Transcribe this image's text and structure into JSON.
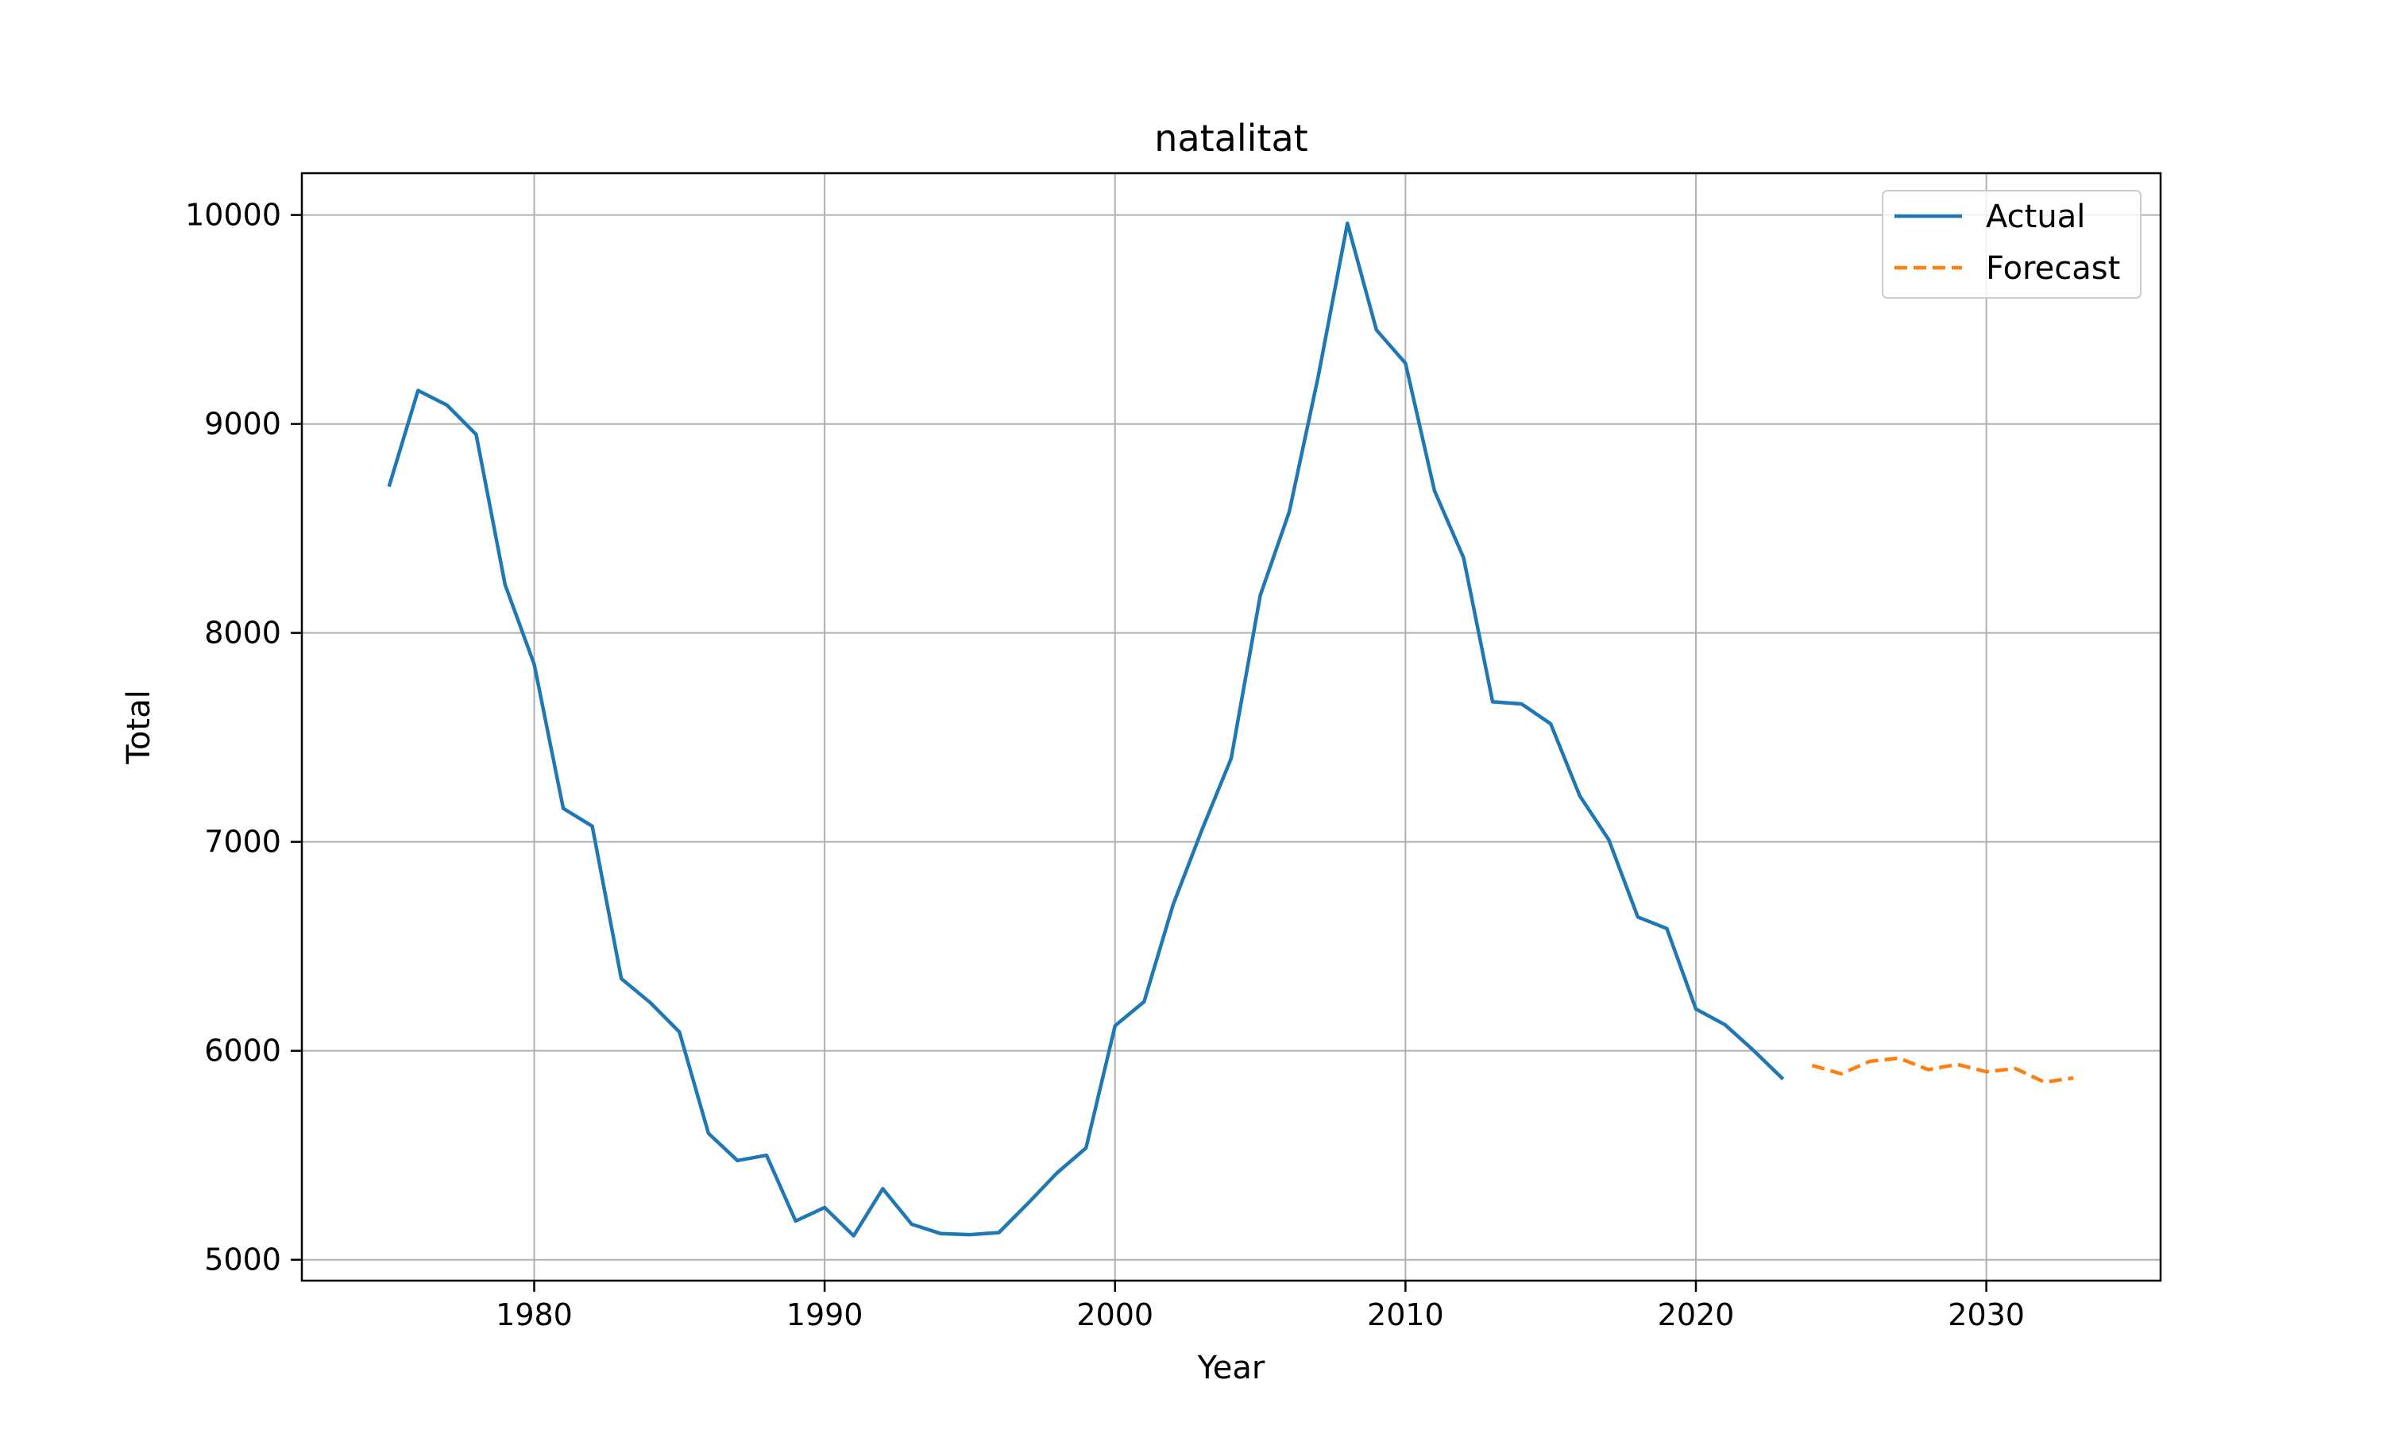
{
  "chart_data": {
    "type": "line",
    "title": "natalitat",
    "xlabel": "Year",
    "ylabel": "Total",
    "xlim": [
      1972,
      2036
    ],
    "ylim": [
      4900,
      10200
    ],
    "xticks": [
      1980,
      1990,
      2000,
      2010,
      2020,
      2030
    ],
    "yticks": [
      5000,
      6000,
      7000,
      8000,
      9000,
      10000
    ],
    "grid": true,
    "legend_position": "top-right",
    "series": [
      {
        "name": "Actual",
        "style": "solid",
        "color": "#1f77b4",
        "x": [
          1975,
          1976,
          1977,
          1978,
          1979,
          1980,
          1981,
          1982,
          1983,
          1984,
          1985,
          1986,
          1987,
          1988,
          1989,
          1990,
          1991,
          1992,
          1993,
          1994,
          1995,
          1996,
          1997,
          1998,
          1999,
          2000,
          2001,
          2002,
          2003,
          2004,
          2005,
          2006,
          2007,
          2008,
          2009,
          2010,
          2011,
          2012,
          2013,
          2014,
          2015,
          2016,
          2017,
          2018,
          2019,
          2020,
          2021,
          2022,
          2023
        ],
        "values": [
          8700,
          9160,
          9090,
          8950,
          8230,
          7850,
          7160,
          7075,
          6345,
          6230,
          6090,
          5605,
          5475,
          5500,
          5185,
          5250,
          5115,
          5340,
          5170,
          5125,
          5120,
          5130,
          5270,
          5415,
          5535,
          6120,
          6235,
          6700,
          7060,
          7400,
          8180,
          8580,
          9230,
          9960,
          9450,
          9290,
          8680,
          8360,
          7670,
          7660,
          7565,
          7220,
          7010,
          6640,
          6585,
          6200,
          6125,
          6000,
          5865
        ]
      },
      {
        "name": "Forecast",
        "style": "dashed",
        "color": "#ff7f0e",
        "x": [
          2024,
          2025,
          2026,
          2027,
          2028,
          2029,
          2030,
          2031,
          2032,
          2033
        ],
        "values": [
          5930,
          5890,
          5950,
          5965,
          5910,
          5935,
          5900,
          5915,
          5850,
          5870
        ]
      }
    ]
  }
}
